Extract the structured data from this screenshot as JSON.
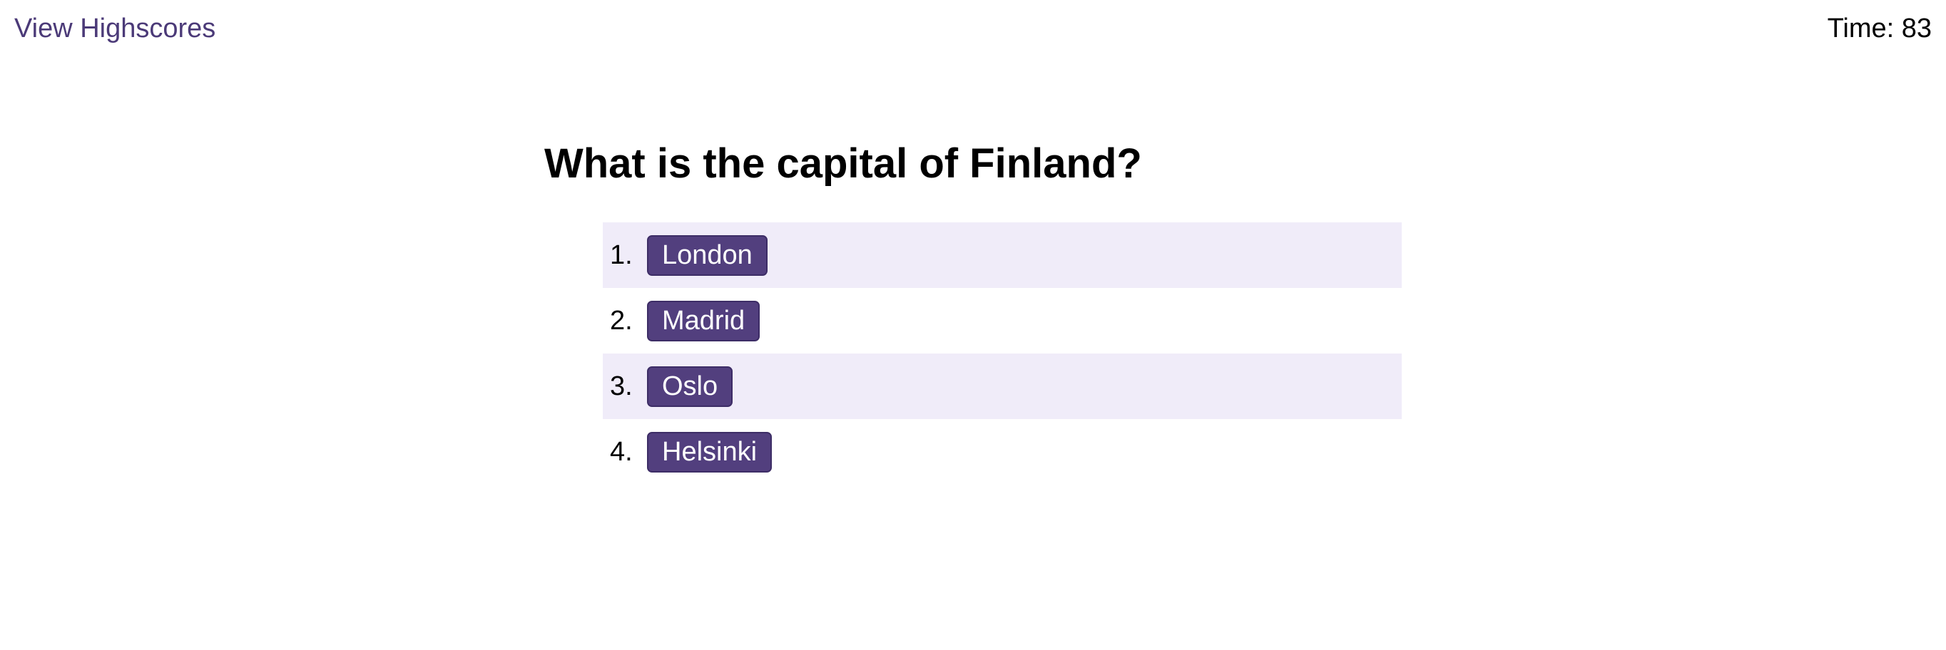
{
  "header": {
    "highscores_link": "View Highscores",
    "timer": "Time: 83"
  },
  "question": {
    "title": "What is the capital of Finland?"
  },
  "choices": [
    {
      "number": "1.",
      "label": "London"
    },
    {
      "number": "2.",
      "label": "Madrid"
    },
    {
      "number": "3.",
      "label": "Oslo"
    },
    {
      "number": "4.",
      "label": "Helsinki"
    }
  ],
  "colors": {
    "accent": "#523f7e",
    "link": "#4b3a78",
    "row_stripe": "#f0ecf9"
  }
}
